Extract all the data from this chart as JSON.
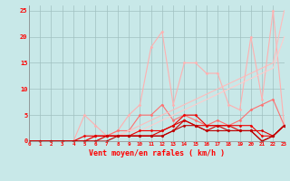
{
  "x": [
    0,
    1,
    2,
    3,
    4,
    5,
    6,
    7,
    8,
    9,
    10,
    11,
    12,
    13,
    14,
    15,
    16,
    17,
    18,
    19,
    20,
    21,
    22,
    23
  ],
  "series": [
    {
      "label": "line_pink_high",
      "color": "#FFB0B0",
      "linewidth": 0.8,
      "marker": "D",
      "markersize": 1.5,
      "y": [
        0,
        0,
        0,
        0,
        0,
        5,
        3,
        1,
        2,
        5,
        7,
        18,
        21,
        7,
        15,
        15,
        13,
        13,
        7,
        6,
        20,
        8,
        25,
        3
      ]
    },
    {
      "label": "line_salmon",
      "color": "#FF7070",
      "linewidth": 0.8,
      "marker": "D",
      "markersize": 1.5,
      "y": [
        0,
        0,
        0,
        0,
        0,
        0,
        1,
        1,
        2,
        2,
        5,
        5,
        7,
        4,
        5,
        4,
        3,
        4,
        3,
        4,
        6,
        7,
        8,
        3
      ]
    },
    {
      "label": "line_diag1",
      "color": "#FFBBBB",
      "linewidth": 0.8,
      "marker": null,
      "markersize": 0,
      "y": [
        0,
        0,
        0,
        0,
        0,
        0,
        0,
        1,
        1,
        2,
        3,
        4,
        5,
        6,
        7,
        8,
        9,
        10,
        11,
        12,
        13,
        14,
        15,
        25
      ]
    },
    {
      "label": "line_diag2",
      "color": "#FFCCCC",
      "linewidth": 0.8,
      "marker": null,
      "markersize": 0,
      "y": [
        0,
        0,
        0,
        0,
        0,
        0,
        1,
        1,
        1,
        2,
        2,
        3,
        4,
        5,
        6,
        7,
        8,
        9,
        10,
        11,
        12,
        13,
        14,
        20
      ]
    },
    {
      "label": "line_red1",
      "color": "#EE0000",
      "linewidth": 0.8,
      "marker": "D",
      "markersize": 1.5,
      "y": [
        0,
        0,
        0,
        0,
        0,
        1,
        1,
        1,
        1,
        1,
        2,
        2,
        2,
        3,
        5,
        5,
        3,
        3,
        3,
        3,
        3,
        1,
        1,
        3
      ]
    },
    {
      "label": "line_red2",
      "color": "#DD0000",
      "linewidth": 0.8,
      "marker": "D",
      "markersize": 1.5,
      "y": [
        0,
        0,
        0,
        0,
        0,
        0,
        1,
        1,
        1,
        1,
        1,
        1,
        2,
        3,
        4,
        3,
        3,
        3,
        3,
        2,
        2,
        2,
        1,
        3
      ]
    },
    {
      "label": "line_red3",
      "color": "#CC0000",
      "linewidth": 0.8,
      "marker": "D",
      "markersize": 1.5,
      "y": [
        0,
        0,
        0,
        0,
        0,
        0,
        0,
        1,
        1,
        1,
        1,
        1,
        1,
        2,
        4,
        3,
        2,
        3,
        2,
        2,
        2,
        0,
        1,
        3
      ]
    },
    {
      "label": "line_red4",
      "color": "#BB0000",
      "linewidth": 0.8,
      "marker": "D",
      "markersize": 1.5,
      "y": [
        0,
        0,
        0,
        0,
        0,
        0,
        0,
        0,
        1,
        1,
        1,
        1,
        1,
        2,
        3,
        3,
        2,
        2,
        2,
        2,
        2,
        0,
        1,
        3
      ]
    }
  ],
  "xlabel": "Vent moyen/en rafales ( km/h )",
  "xlim": [
    0,
    23
  ],
  "ylim": [
    0,
    26
  ],
  "yticks": [
    0,
    5,
    10,
    15,
    20,
    25
  ],
  "xticks": [
    0,
    1,
    2,
    3,
    4,
    5,
    6,
    7,
    8,
    9,
    10,
    11,
    12,
    13,
    14,
    15,
    16,
    17,
    18,
    19,
    20,
    21,
    22,
    23
  ],
  "background_color": "#C8E8E8",
  "grid_color": "#A0C0C0",
  "xlabel_color": "#FF0000",
  "tick_color": "#FF0000"
}
